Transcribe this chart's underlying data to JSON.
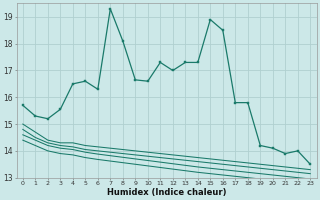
{
  "xlabel": "Humidex (Indice chaleur)",
  "bg_color": "#cce8e8",
  "grid_color": "#b0d0d0",
  "line_color": "#1a7a6a",
  "x_values": [
    0,
    1,
    2,
    3,
    4,
    5,
    6,
    7,
    8,
    9,
    10,
    11,
    12,
    13,
    14,
    15,
    16,
    17,
    18,
    19,
    20,
    21,
    22,
    23
  ],
  "main_line": [
    15.7,
    15.3,
    15.2,
    15.55,
    16.5,
    16.6,
    16.3,
    19.3,
    18.1,
    16.65,
    16.6,
    17.3,
    17.0,
    17.3,
    17.3,
    18.9,
    18.5,
    15.8,
    15.8,
    14.2,
    14.1,
    13.9,
    14.0,
    13.5
  ],
  "lower1": [
    15.0,
    14.7,
    14.4,
    14.3,
    14.3,
    14.2,
    14.15,
    14.1,
    14.05,
    14.0,
    13.95,
    13.9,
    13.85,
    13.8,
    13.75,
    13.7,
    13.65,
    13.6,
    13.55,
    13.5,
    13.45,
    13.4,
    13.35,
    13.3
  ],
  "lower2": [
    14.8,
    14.5,
    14.3,
    14.2,
    14.15,
    14.05,
    14.0,
    13.95,
    13.9,
    13.85,
    13.8,
    13.75,
    13.7,
    13.65,
    13.6,
    13.55,
    13.5,
    13.45,
    13.4,
    13.35,
    13.3,
    13.25,
    13.2,
    13.15
  ],
  "lower3": [
    14.6,
    14.4,
    14.2,
    14.1,
    14.05,
    13.95,
    13.88,
    13.82,
    13.76,
    13.7,
    13.64,
    13.58,
    13.52,
    13.46,
    13.4,
    13.35,
    13.3,
    13.25,
    13.2,
    13.15,
    13.1,
    13.05,
    13.0,
    12.95
  ],
  "lower4": [
    14.4,
    14.2,
    14.0,
    13.9,
    13.85,
    13.75,
    13.68,
    13.62,
    13.56,
    13.5,
    13.44,
    13.38,
    13.32,
    13.26,
    13.2,
    13.15,
    13.1,
    13.05,
    13.0,
    12.95,
    12.9,
    12.85,
    12.8,
    12.75
  ],
  "ylim": [
    13.0,
    19.5
  ],
  "yticks": [
    13,
    14,
    15,
    16,
    17,
    18,
    19
  ],
  "xlim": [
    -0.5,
    23.5
  ],
  "xticks": [
    0,
    1,
    2,
    3,
    4,
    5,
    6,
    7,
    8,
    9,
    10,
    11,
    12,
    13,
    14,
    15,
    16,
    17,
    18,
    19,
    20,
    21,
    22,
    23
  ]
}
